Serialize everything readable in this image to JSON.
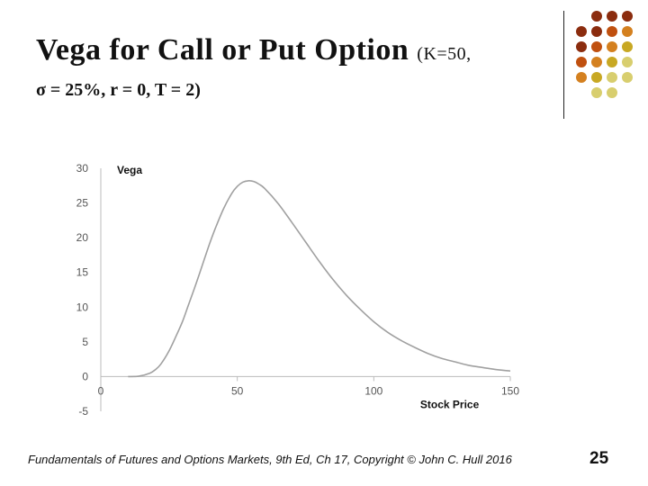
{
  "slide": {
    "title": "Vega for Call or Put Option",
    "title_params_1": "(K=50,",
    "title_params_2": "σ = 25%, r = 0, T = 2)",
    "footer": "Fundamentals of Futures and Options Markets, 9th Ed, Ch 17, Copyright © John C. Hull 2016",
    "page_number": "25",
    "decor_colors": [
      [
        "",
        "#8B2C0E",
        "#8B2C0E",
        "#8B2C0E"
      ],
      [
        "#8B2C0E",
        "#8B2C0E",
        "#C0500F",
        "#D4801F"
      ],
      [
        "#8B2C0E",
        "#C0500F",
        "#D4801F",
        "#C8A823"
      ],
      [
        "#C0500F",
        "#D4801F",
        "#C8A823",
        "#D8CE6E"
      ],
      [
        "#D4801F",
        "#C8A823",
        "#D8CE6E",
        "#D8CE6E"
      ],
      [
        "",
        "#D8CE6E",
        "#D8CE6E",
        ""
      ]
    ]
  },
  "chart_data": {
    "type": "line",
    "ylabel": "Vega",
    "xlabel": "Stock Price",
    "xlim": [
      0,
      150
    ],
    "ylim": [
      -5,
      30
    ],
    "xticks": [
      0,
      50,
      100,
      150
    ],
    "yticks": [
      30,
      25,
      20,
      15,
      10,
      5,
      0,
      -5
    ],
    "grid": false,
    "line_color": "#a0a0a0",
    "series": [
      {
        "x": [
          10,
          14,
          18,
          20,
          22,
          25,
          28,
          30,
          32,
          35,
          38,
          40,
          42,
          45,
          48,
          50,
          52,
          54,
          56,
          58,
          60,
          65,
          70,
          75,
          80,
          85,
          90,
          95,
          100,
          105,
          110,
          115,
          120,
          125,
          130,
          135,
          140,
          145,
          150
        ],
        "values": [
          0.0,
          0.06,
          0.5,
          1.0,
          1.8,
          3.7,
          6.2,
          8.0,
          10.2,
          13.5,
          17.0,
          19.3,
          21.4,
          24.2,
          26.4,
          27.4,
          28.0,
          28.2,
          28.1,
          27.7,
          27.1,
          24.9,
          22.2,
          19.4,
          16.6,
          14.0,
          11.7,
          9.7,
          7.9,
          6.4,
          5.2,
          4.2,
          3.3,
          2.6,
          2.1,
          1.6,
          1.3,
          1.0,
          0.8
        ]
      }
    ]
  }
}
